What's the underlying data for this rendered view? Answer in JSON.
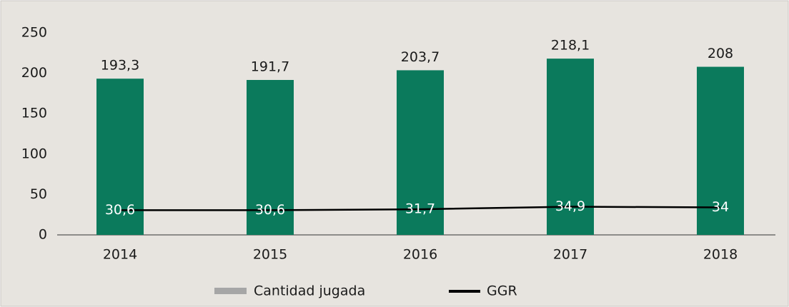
{
  "chart_data": {
    "type": "bar_line",
    "categories": [
      "2014",
      "2015",
      "2016",
      "2017",
      "2018"
    ],
    "series": [
      {
        "name": "Cantidad jugada",
        "type": "bar",
        "color": "#0b7a5c",
        "legend_color": "#a6a6a6",
        "values": [
          193.3,
          191.7,
          203.7,
          218.1,
          208
        ],
        "value_labels": [
          "193,3",
          "191,7",
          "203,7",
          "218,1",
          "208"
        ]
      },
      {
        "name": "GGR",
        "type": "line",
        "color": "#000000",
        "values": [
          30.6,
          30.6,
          31.7,
          34.9,
          34
        ],
        "value_labels": [
          "30,6",
          "30,6",
          "31,7",
          "34,9",
          "34"
        ]
      }
    ],
    "ylim": [
      0,
      250
    ],
    "yticks": [
      0,
      50,
      100,
      150,
      200,
      250
    ],
    "grid": false,
    "legend": "bottom"
  }
}
